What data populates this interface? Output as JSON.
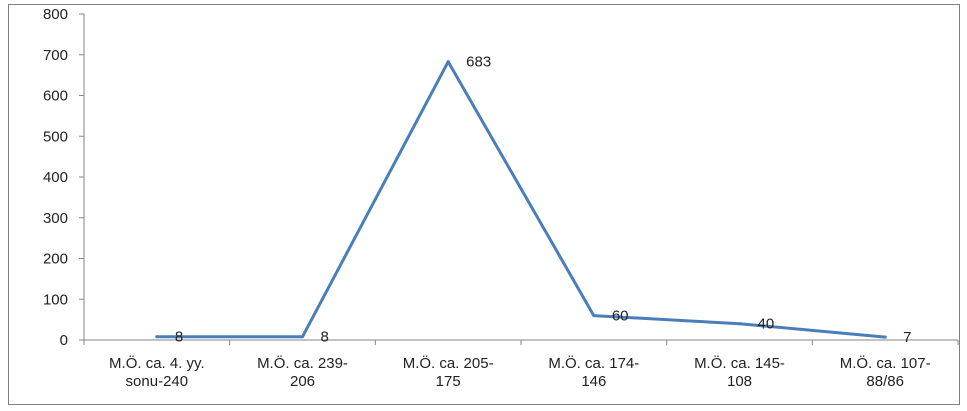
{
  "chart_data": {
    "type": "line",
    "categories": [
      [
        "M.Ö. ca. 4. yy.",
        "sonu-240"
      ],
      [
        "M.Ö. ca. 239-",
        "206"
      ],
      [
        "M.Ö. ca. 205-",
        "175"
      ],
      [
        "M.Ö. ca. 174-",
        "146"
      ],
      [
        "M.Ö. ca. 145-",
        "108"
      ],
      [
        "M.Ö. ca. 107-",
        "88/86"
      ]
    ],
    "series": [
      {
        "values": [
          8,
          8,
          683,
          60,
          40,
          7
        ],
        "color": "#4a7ebb",
        "data_labels": [
          "8",
          "8",
          "683",
          "60",
          "40",
          "7"
        ]
      }
    ],
    "ylim": [
      0,
      800
    ],
    "yticks": [
      0,
      100,
      200,
      300,
      400,
      500,
      600,
      700,
      800
    ],
    "grid": false,
    "legend": "none",
    "title": "",
    "xlabel": "",
    "ylabel": ""
  }
}
